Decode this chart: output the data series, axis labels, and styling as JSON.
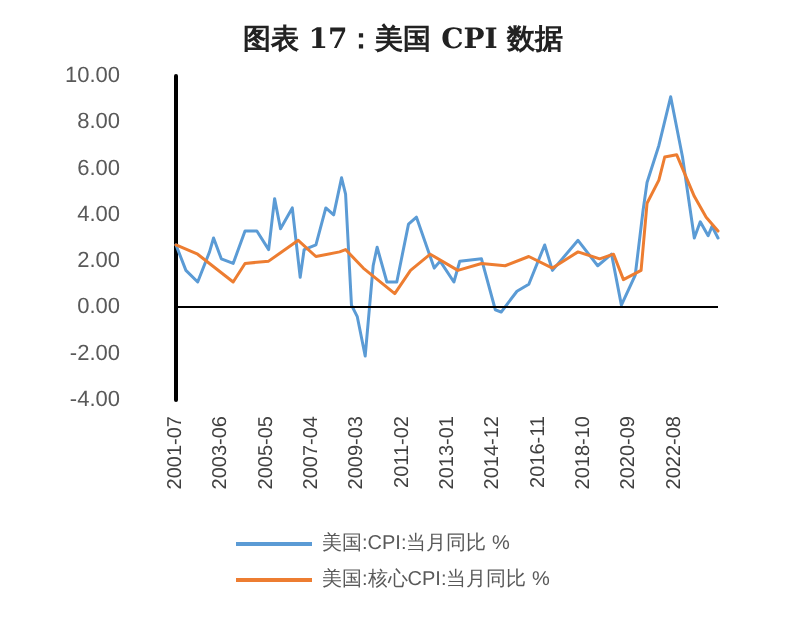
{
  "chart_data": {
    "type": "line",
    "title": "图表 17：美国 CPI 数据",
    "xlim": [
      "2001-07",
      "2024-06"
    ],
    "xticks": [
      "2001-07",
      "2003-06",
      "2005-05",
      "2007-04",
      "2009-03",
      "2011-02",
      "2013-01",
      "2014-12",
      "2016-11",
      "2018-10",
      "2020-09",
      "2022-08"
    ],
    "ylim": [
      -4,
      10
    ],
    "yticks": [
      {
        "value": -4,
        "label": "-4.00"
      },
      {
        "value": -2,
        "label": "-2.00"
      },
      {
        "value": 0,
        "label": "0.00"
      },
      {
        "value": 2,
        "label": "2.00"
      },
      {
        "value": 4,
        "label": "4.00"
      },
      {
        "value": 6,
        "label": "6.00"
      },
      {
        "value": 8,
        "label": "8.00"
      },
      {
        "value": 10,
        "label": "10.00"
      }
    ],
    "grid": false,
    "ref_lines": [
      {
        "axis": "y",
        "value": 0,
        "color": "#000000"
      }
    ],
    "legend": "bottom",
    "marker": "none",
    "line_style": "solid",
    "series": [
      {
        "name": "美国:CPI:当月同比 %",
        "color": "#5b9bd5",
        "x": [
          "2001-07",
          "2001-12",
          "2002-06",
          "2002-12",
          "2003-02",
          "2003-06",
          "2003-12",
          "2004-06",
          "2004-12",
          "2005-06",
          "2005-09",
          "2005-12",
          "2006-06",
          "2006-10",
          "2006-12",
          "2007-06",
          "2007-11",
          "2008-03",
          "2008-07",
          "2008-09",
          "2008-12",
          "2009-03",
          "2009-07",
          "2009-11",
          "2010-01",
          "2010-06",
          "2010-11",
          "2011-05",
          "2011-09",
          "2012-06",
          "2012-09",
          "2013-04",
          "2013-07",
          "2014-06",
          "2015-01",
          "2015-04",
          "2015-12",
          "2016-06",
          "2017-02",
          "2017-06",
          "2018-07",
          "2019-05",
          "2019-12",
          "2020-05",
          "2020-12",
          "2021-04",
          "2021-06",
          "2021-12",
          "2022-06",
          "2022-12",
          "2023-06",
          "2023-09",
          "2024-01",
          "2024-03",
          "2024-06"
        ],
        "values": [
          2.7,
          1.6,
          1.1,
          2.4,
          3.0,
          2.1,
          1.9,
          3.3,
          3.3,
          2.5,
          4.7,
          3.4,
          4.3,
          1.3,
          2.5,
          2.7,
          4.3,
          4.0,
          5.6,
          4.9,
          0.1,
          -0.4,
          -2.1,
          1.8,
          2.6,
          1.1,
          1.1,
          3.6,
          3.9,
          1.7,
          2.0,
          1.1,
          2.0,
          2.1,
          -0.1,
          -0.2,
          0.7,
          1.0,
          2.7,
          1.6,
          2.9,
          1.8,
          2.3,
          0.1,
          1.4,
          4.2,
          5.4,
          7.0,
          9.1,
          6.5,
          3.0,
          3.7,
          3.1,
          3.5,
          3.0
        ]
      },
      {
        "name": "美国:核心CPI:当月同比 %",
        "color": "#ed7d31",
        "x": [
          "2001-07",
          "2002-06",
          "2003-12",
          "2004-06",
          "2005-06",
          "2006-09",
          "2007-06",
          "2008-06",
          "2008-09",
          "2009-06",
          "2010-10",
          "2011-06",
          "2012-04",
          "2013-06",
          "2014-06",
          "2015-06",
          "2016-06",
          "2017-06",
          "2018-07",
          "2019-06",
          "2020-01",
          "2020-06",
          "2021-03",
          "2021-06",
          "2021-12",
          "2022-03",
          "2022-09",
          "2023-06",
          "2023-12",
          "2024-06"
        ],
        "values": [
          2.7,
          2.3,
          1.1,
          1.9,
          2.0,
          2.9,
          2.2,
          2.4,
          2.5,
          1.7,
          0.6,
          1.6,
          2.3,
          1.6,
          1.9,
          1.8,
          2.2,
          1.7,
          2.4,
          2.1,
          2.3,
          1.2,
          1.6,
          4.5,
          5.5,
          6.5,
          6.6,
          4.8,
          3.9,
          3.3
        ]
      }
    ]
  }
}
